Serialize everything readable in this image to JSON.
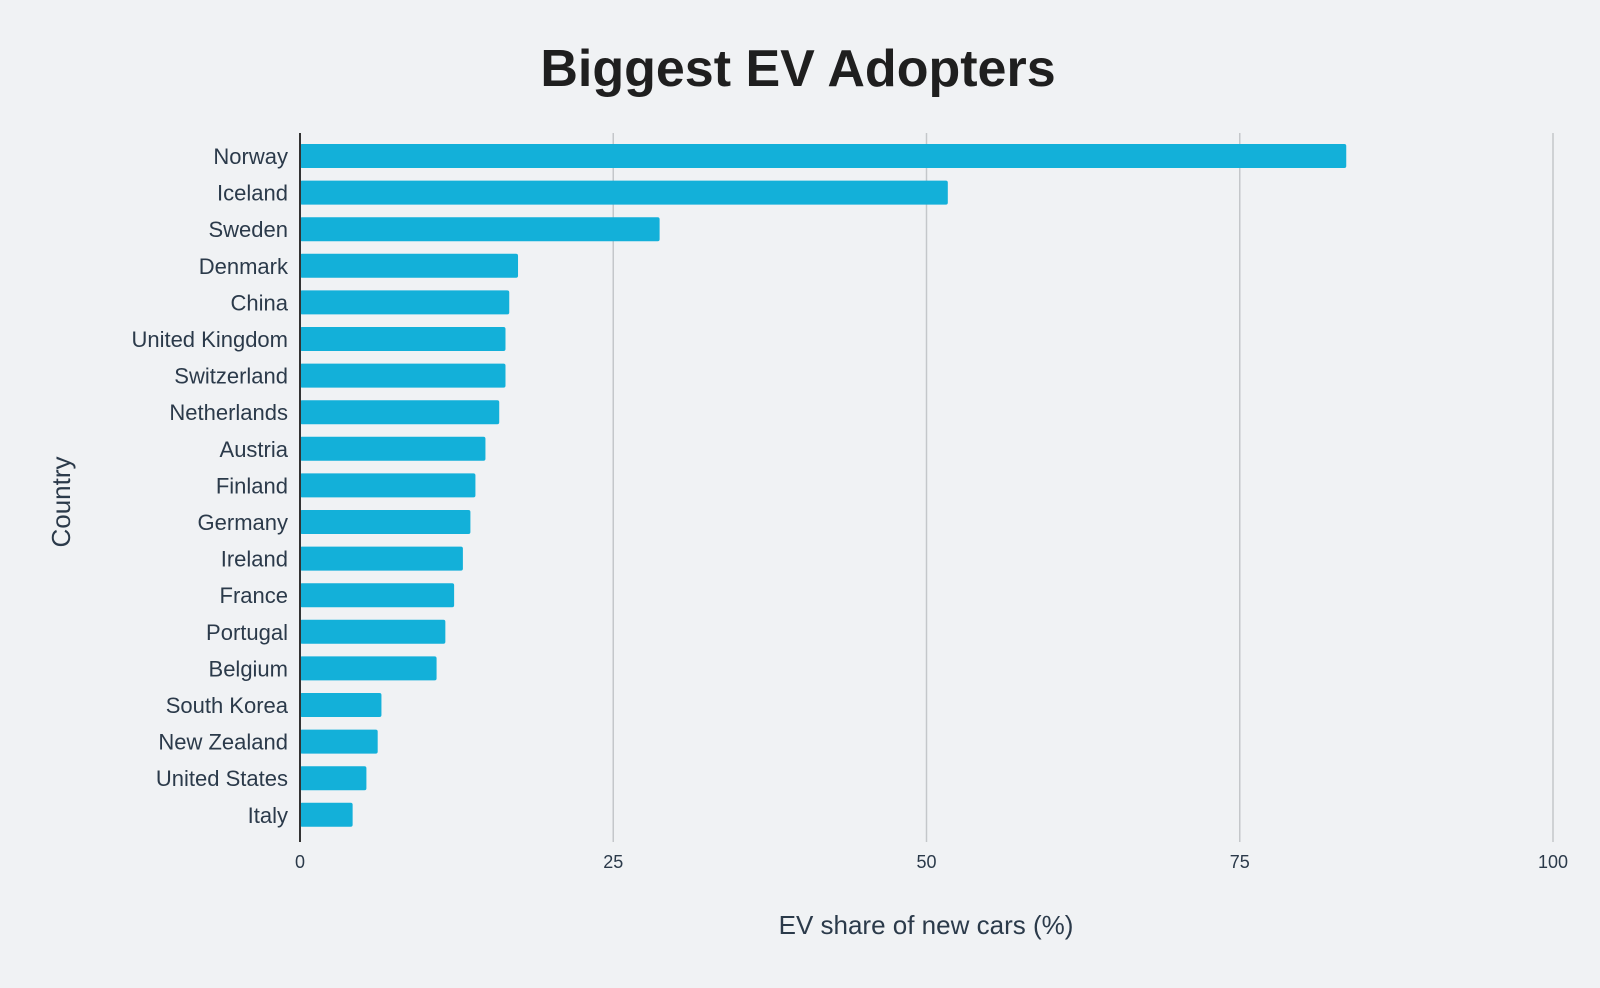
{
  "chart_data": {
    "type": "bar",
    "orientation": "horizontal",
    "title": "Biggest EV Adopters",
    "xlabel": "EV share of new cars (%)",
    "ylabel": "Country",
    "xlim": [
      0,
      100
    ],
    "xticks": [
      0,
      25,
      50,
      75,
      100
    ],
    "grid": true,
    "bar_color": "#13b0d9",
    "background_color": "#f0f2f4",
    "categories": [
      "Norway",
      "Iceland",
      "Sweden",
      "Denmark",
      "China",
      "United Kingdom",
      "Switzerland",
      "Netherlands",
      "Austria",
      "Finland",
      "Germany",
      "Ireland",
      "France",
      "Portugal",
      "Belgium",
      "South Korea",
      "New Zealand",
      "United States",
      "Italy"
    ],
    "values": [
      83.5,
      51.7,
      28.7,
      17.4,
      16.7,
      16.4,
      16.4,
      15.9,
      14.8,
      14.0,
      13.6,
      13.0,
      12.3,
      11.6,
      10.9,
      6.5,
      6.2,
      5.3,
      4.2
    ]
  }
}
